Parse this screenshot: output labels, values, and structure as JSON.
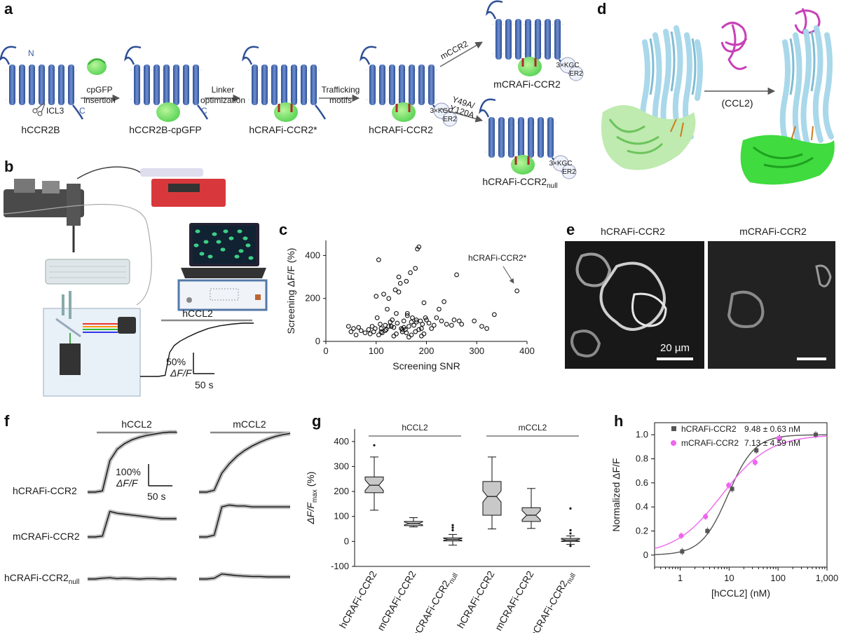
{
  "panels": {
    "a": {
      "letter": "a",
      "construct_labels": [
        "hCCR2B",
        "hCCR2B-cpGFP",
        "hCRAFi-CCR2*",
        "hCRAFi-CCR2",
        "mCRAFi-CCR2",
        "hCRAFi-CCR2"
      ],
      "null_subscript": "null",
      "steps": [
        "cpGFP",
        "insertion",
        "Linker",
        "optimization",
        "Trafficking",
        "motifs",
        "mCCR2",
        "Y49A/",
        "Y120A"
      ],
      "topology": {
        "n_term": "N",
        "c_term": "C",
        "icl3": "ICL3"
      },
      "tags": {
        "kgc": "3×KGC",
        "er2": "ER2"
      }
    },
    "b": {
      "letter": "b",
      "stimulus": "hCCL2",
      "scale_y": "50%",
      "scale_y_unit": "ΔF/F",
      "scale_x": "50 s"
    },
    "c": {
      "letter": "c",
      "annotation": "hCRAFi-CCR2*"
    },
    "d": {
      "letter": "d",
      "ligand": "(CCL2)"
    },
    "e": {
      "letter": "e",
      "titles": [
        "hCRAFi-CCR2",
        "mCRAFi-CCR2"
      ],
      "scalebar": "20 µm"
    },
    "f": {
      "letter": "f",
      "stimuli": [
        "hCCL2",
        "mCCL2"
      ],
      "rows": [
        "hCRAFi-CCR2",
        "mCRAFi-CCR2",
        "hCRAFi-CCR2"
      ],
      "null_subscript": "null",
      "scale_y": "100%",
      "scale_y_unit": "ΔF/F",
      "scale_x": "50 s"
    },
    "g": {
      "letter": "g"
    },
    "h": {
      "letter": "h"
    }
  },
  "chart_data": [
    {
      "type": "scatter",
      "panel": "c",
      "title": "",
      "xlabel": "Screening SNR",
      "ylabel": "Screening ΔF/F (%)",
      "xlim": [
        0,
        400
      ],
      "ylim": [
        0,
        470
      ],
      "xticks": [
        0,
        100,
        200,
        300,
        400
      ],
      "yticks": [
        0,
        200,
        400
      ],
      "series": [
        {
          "name": "variants",
          "x": [
            45,
            50,
            55,
            60,
            65,
            70,
            78,
            85,
            88,
            92,
            95,
            98,
            100,
            102,
            105,
            108,
            110,
            112,
            115,
            118,
            120,
            122,
            125,
            128,
            130,
            132,
            135,
            138,
            140,
            142,
            145,
            148,
            150,
            152,
            155,
            158,
            160,
            162,
            165,
            168,
            170,
            172,
            175,
            178,
            180,
            182,
            185,
            188,
            190,
            192,
            195,
            198,
            200,
            205,
            210,
            215,
            220,
            225,
            230,
            235,
            240,
            250,
            255,
            260,
            265,
            270,
            295,
            310,
            320,
            335,
            380,
            105,
            110,
            118,
            125,
            135,
            140,
            152,
            155,
            160,
            165,
            170,
            178,
            185,
            190,
            195,
            162,
            180,
            145,
            130
          ],
          "y": [
            70,
            45,
            60,
            30,
            65,
            50,
            40,
            55,
            35,
            70,
            45,
            60,
            210,
            110,
            380,
            80,
            60,
            40,
            220,
            75,
            55,
            150,
            200,
            90,
            70,
            100,
            65,
            240,
            130,
            85,
            300,
            270,
            60,
            45,
            95,
            55,
            280,
            130,
            70,
            320,
            90,
            110,
            75,
            340,
            100,
            430,
            440,
            95,
            60,
            80,
            180,
            110,
            100,
            85,
            60,
            75,
            110,
            150,
            95,
            185,
            80,
            75,
            100,
            310,
            95,
            80,
            95,
            70,
            60,
            125,
            235,
            30,
            45,
            50,
            70,
            25,
            35,
            55,
            65,
            40,
            20,
            30,
            45,
            55,
            25,
            35,
            120,
            90,
            230,
            70
          ]
        }
      ]
    },
    {
      "type": "line",
      "panel": "b",
      "title": "",
      "stimulus": "hCCL2",
      "x": [
        0,
        0.08,
        0.16,
        0.22,
        0.26,
        0.3,
        0.35,
        0.42,
        0.5,
        0.6,
        0.7,
        0.8,
        0.9,
        1.0
      ],
      "values": [
        0,
        0,
        0,
        0.02,
        0.45,
        0.58,
        0.66,
        0.74,
        0.82,
        0.9,
        0.95,
        0.98,
        1.0,
        1.0
      ],
      "xlabel": "",
      "ylabel": ""
    },
    {
      "type": "line",
      "panel": "f",
      "title": "",
      "conditions": [
        "hCCL2",
        "mCCL2"
      ],
      "rows": [
        {
          "name": "hCRAFi-CCR2",
          "hCCL2": [
            0,
            0,
            0.02,
            0.5,
            0.68,
            0.77,
            0.83,
            0.87,
            0.9,
            0.92,
            0.94,
            0.95,
            0.95
          ],
          "mCCL2": [
            0,
            0,
            0.03,
            0.3,
            0.45,
            0.57,
            0.66,
            0.73,
            0.79,
            0.84,
            0.88,
            0.91,
            0.93
          ]
        },
        {
          "name": "mCRAFi-CCR2",
          "hCCL2": [
            0,
            0,
            0.01,
            0.28,
            0.26,
            0.25,
            0.24,
            0.23,
            0.22,
            0.21,
            0.2,
            0.2,
            0.2
          ],
          "mCCL2": [
            0,
            0,
            0.02,
            0.33,
            0.35,
            0.34,
            0.34,
            0.33,
            0.33,
            0.33,
            0.33,
            0.33,
            0.33
          ]
        },
        {
          "name": "hCRAFi-CCR2 null",
          "hCCL2": [
            0,
            0,
            0.02,
            0.03,
            0.01,
            0.02,
            0.01,
            0.0,
            0.01,
            0.01,
            0.0,
            0.01,
            0.0
          ],
          "mCCL2": [
            0,
            0,
            0.02,
            0.12,
            0.1,
            0.08,
            0.07,
            0.06,
            0.06,
            0.05,
            0.05,
            0.05,
            0.05
          ]
        }
      ]
    },
    {
      "type": "box",
      "panel": "g",
      "title": "",
      "ylabel": "ΔF/F max (%)",
      "ylim": [
        -100,
        450
      ],
      "yticks": [
        -100,
        0,
        100,
        200,
        300,
        400
      ],
      "groups": [
        {
          "label": "hCCL2",
          "span": [
            0,
            2
          ]
        },
        {
          "label": "mCCL2",
          "span": [
            3,
            5
          ]
        }
      ],
      "categories": [
        "hCRAFi-CCR2",
        "mCRAFi-CCR2",
        "hCRAFi-CCR2null",
        "hCRAFi-CCR2",
        "mCRAFi-CCR2",
        "hCRAFi-CCR2null"
      ],
      "boxes": [
        {
          "min": 125,
          "q1": 195,
          "median": 225,
          "q3": 258,
          "max": 338,
          "outliers": [
            385
          ],
          "fill": "#c8c8c8"
        },
        {
          "min": 58,
          "q1": 63,
          "median": 72,
          "q3": 80,
          "max": 95,
          "outliers": [],
          "fill": "#c8c8c8"
        },
        {
          "min": -15,
          "q1": 2,
          "median": 8,
          "q3": 14,
          "max": 28,
          "outliers": [
            45,
            55,
            65
          ],
          "fill": "#c8c8c8"
        },
        {
          "min": 50,
          "q1": 105,
          "median": 180,
          "q3": 240,
          "max": 338,
          "outliers": [],
          "fill": "#c8c8c8"
        },
        {
          "min": 52,
          "q1": 80,
          "median": 105,
          "q3": 135,
          "max": 212,
          "outliers": [],
          "fill": "#c8c8c8"
        },
        {
          "min": -12,
          "q1": 0,
          "median": 5,
          "q3": 12,
          "max": 22,
          "outliers": [
            32,
            45,
            -18,
            132
          ],
          "fill": "#c8c8c8"
        }
      ]
    },
    {
      "type": "line",
      "panel": "h",
      "title": "",
      "xlabel": "[hCCL2] (nM)",
      "ylabel": "Normalized ΔF/F",
      "xscale": "log",
      "xlim": [
        0.3,
        1000
      ],
      "ylim": [
        -0.1,
        1.1
      ],
      "xticks": [
        1,
        10,
        100,
        1000
      ],
      "xtick_labels": [
        "1",
        "10",
        "100",
        "1,000"
      ],
      "yticks": [
        0,
        0.2,
        0.4,
        0.6,
        0.8,
        1.0
      ],
      "ytick_labels": [
        "0",
        "0.2",
        "0.4",
        "0.6",
        "0.8",
        "1.0"
      ],
      "legend_position": "top-left",
      "series": [
        {
          "name": "hCRAFi-CCR2",
          "ec50_label": "9.48 ± 0.63 nM",
          "ec50": 9.48,
          "hill": 1.6,
          "color": "#555555",
          "x": [
            1.1,
            3.6,
            11.5,
            36,
            108,
            590
          ],
          "y": [
            0.03,
            0.2,
            0.55,
            0.87,
            0.97,
            1.0
          ]
        },
        {
          "name": "mCRAFi-CCR2",
          "ec50_label": "7.13 ± 4.59 nM",
          "ec50": 7.13,
          "hill": 0.9,
          "color": "#ee66ee",
          "x": [
            1.05,
            3.3,
            9.8,
            34,
            104
          ],
          "y": [
            0.16,
            0.32,
            0.58,
            0.77,
            0.97
          ]
        }
      ]
    }
  ]
}
